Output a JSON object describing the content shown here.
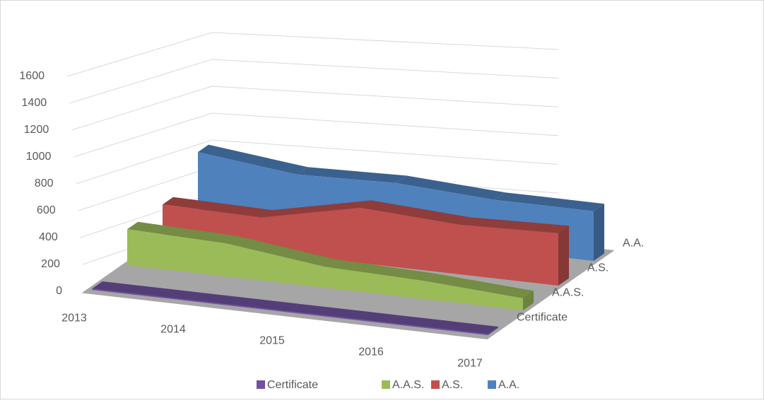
{
  "chart_data": {
    "type": "area3d",
    "categories": [
      "2013",
      "2014",
      "2015",
      "2016",
      "2017"
    ],
    "series": [
      {
        "name": "Certificate",
        "color": "#7052a0",
        "values": [
          20,
          20,
          20,
          20,
          20
        ]
      },
      {
        "name": "A.A.S.",
        "color": "#9bbb59",
        "values": [
          650,
          600,
          380,
          330,
          220
        ]
      },
      {
        "name": "A.S.",
        "color": "#c0504d",
        "values": [
          650,
          620,
          1000,
          900,
          950
        ]
      },
      {
        "name": "A.A.",
        "color": "#4f81bd",
        "values": [
          1150,
          950,
          1000,
          900,
          900
        ]
      }
    ],
    "ylim": [
      0,
      1600
    ],
    "yticks": [
      0,
      200,
      400,
      600,
      800,
      1000,
      1200,
      1400,
      1600
    ],
    "grid": true,
    "legend": "bottom"
  }
}
